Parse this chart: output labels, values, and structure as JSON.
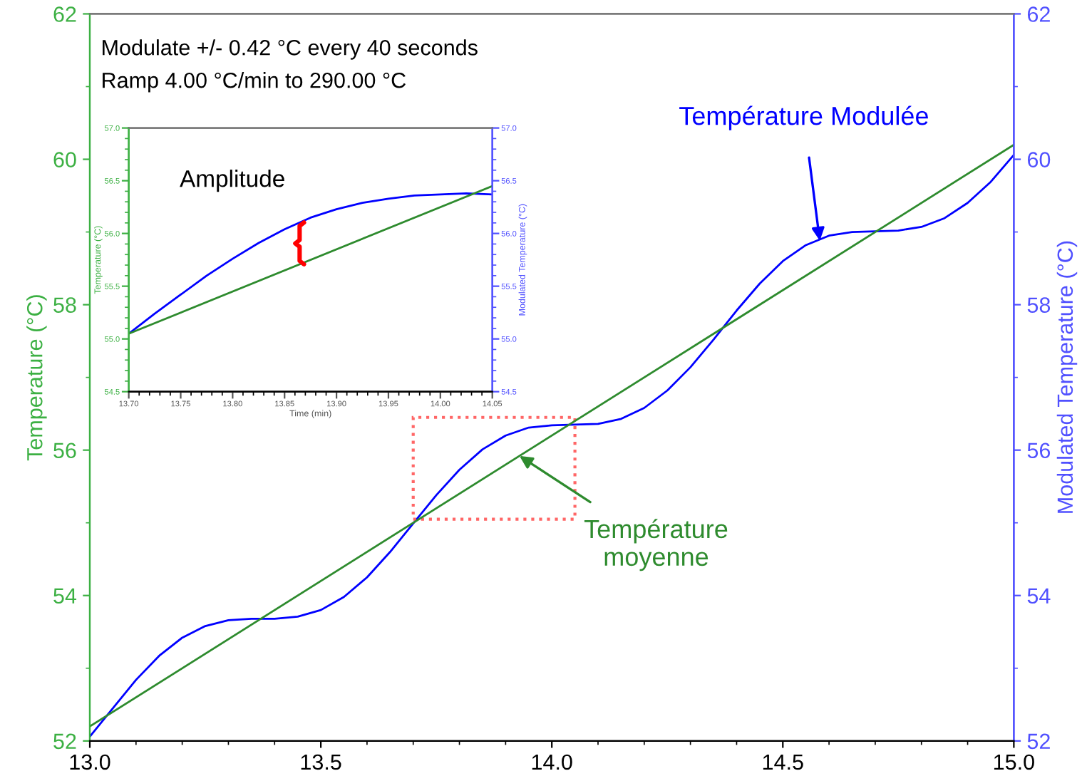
{
  "chart_data": [
    {
      "type": "line",
      "xlim": [
        13.0,
        15.0
      ],
      "xticks": [
        {
          "value": 13.0,
          "label": "13.0"
        },
        {
          "value": 13.5,
          "label": "13.5"
        },
        {
          "value": 14.0,
          "label": "14.0"
        },
        {
          "value": 14.5,
          "label": "14.5"
        },
        {
          "value": 15.0,
          "label": "15.0"
        }
      ],
      "ylim": [
        52,
        62
      ],
      "yticks": [
        52,
        54,
        56,
        58,
        60,
        62
      ],
      "y2lim": [
        52,
        62
      ],
      "y2ticks": [
        52,
        54,
        56,
        58,
        60,
        62
      ],
      "ylabel": "Temperature (°C)",
      "y2label": "Modulated Temperature (°C)",
      "annotations": [
        "Modulate +/- 0.42 °C every 40 seconds",
        "Ramp 4.00 °C/min to 290.00 °C",
        {
          "text": "Température Modulée",
          "x": 14.58,
          "y": 58.88
        },
        {
          "text": "Température\nmoyenne",
          "x": 13.93,
          "y": 55.92
        }
      ],
      "series": [
        {
          "color": "#2e8b2e",
          "x": [
            13.0,
            15.0
          ],
          "values": [
            52.2,
            60.2
          ]
        },
        {
          "color": "#0000ff",
          "axis": "y2",
          "x": [
            13.0,
            13.05,
            13.1,
            13.15,
            13.2,
            13.25,
            13.3,
            13.35,
            13.4,
            13.45,
            13.5,
            13.55,
            13.6,
            13.65,
            13.7,
            13.75,
            13.8,
            13.85,
            13.9,
            13.95,
            14.0,
            14.05,
            14.1,
            14.15,
            14.2,
            14.25,
            14.3,
            14.35,
            14.4,
            14.45,
            14.5,
            14.55,
            14.6,
            14.65,
            14.7,
            14.75,
            14.8,
            14.85,
            14.9,
            14.95,
            15.0
          ],
          "values": [
            52.06,
            52.45,
            52.84,
            53.17,
            53.42,
            53.58,
            53.66,
            53.68,
            53.68,
            53.71,
            53.8,
            53.98,
            54.25,
            54.6,
            54.99,
            55.38,
            55.73,
            56.01,
            56.2,
            56.31,
            56.34,
            56.35,
            56.36,
            56.43,
            56.58,
            56.82,
            57.14,
            57.52,
            57.92,
            58.29,
            58.6,
            58.82,
            58.95,
            59.0,
            59.01,
            59.02,
            59.07,
            59.19,
            59.4,
            59.69,
            60.06
          ]
        }
      ]
    },
    {
      "type": "line",
      "xlim": [
        13.7,
        14.05
      ],
      "xticks": [
        {
          "value": 13.7,
          "label": "13.70"
        },
        {
          "value": 13.75,
          "label": "13.75"
        },
        {
          "value": 13.8,
          "label": "13.80"
        },
        {
          "value": 13.85,
          "label": "13.85"
        },
        {
          "value": 13.9,
          "label": "13.90"
        },
        {
          "value": 13.95,
          "label": "13.95"
        },
        {
          "value": 14.0,
          "label": "14.00"
        },
        {
          "value": 14.05,
          "label": "14.05"
        }
      ],
      "ylim": [
        54.5,
        57.0
      ],
      "yticks": [
        {
          "value": 54.5,
          "label": "54.5"
        },
        {
          "value": 55.0,
          "label": "55.0"
        },
        {
          "value": 55.5,
          "label": "55.5"
        },
        {
          "value": 56.0,
          "label": "56.0"
        },
        {
          "value": 56.5,
          "label": "56.5"
        },
        {
          "value": 57.0,
          "label": "57.0"
        }
      ],
      "y2lim": [
        54.5,
        57.0
      ],
      "y2ticks": [
        {
          "value": 54.5,
          "label": "54.5"
        },
        {
          "value": 55.0,
          "label": "55.0"
        },
        {
          "value": 55.5,
          "label": "55.5"
        },
        {
          "value": 56.0,
          "label": "56.0"
        },
        {
          "value": 56.5,
          "label": "56.5"
        },
        {
          "value": 57.0,
          "label": "57.0"
        }
      ],
      "xlabel": "Time (min)",
      "ylabel": "Temperature (°C)",
      "y2label": "Modulated Temperature (°C)",
      "annotations": [
        "Amplitude"
      ],
      "series": [
        {
          "color": "#2e8b2e",
          "x": [
            13.7,
            14.05
          ],
          "values": [
            55.05,
            56.45
          ]
        },
        {
          "color": "#0000ff",
          "axis": "y2",
          "x": [
            13.7,
            13.725,
            13.75,
            13.775,
            13.8,
            13.825,
            13.85,
            13.875,
            13.9,
            13.925,
            13.95,
            13.975,
            14.0,
            14.025,
            14.05
          ],
          "values": [
            55.05,
            55.24,
            55.42,
            55.6,
            55.76,
            55.91,
            56.04,
            56.15,
            56.23,
            56.29,
            56.33,
            56.36,
            56.37,
            56.38,
            56.37
          ]
        }
      ]
    }
  ]
}
